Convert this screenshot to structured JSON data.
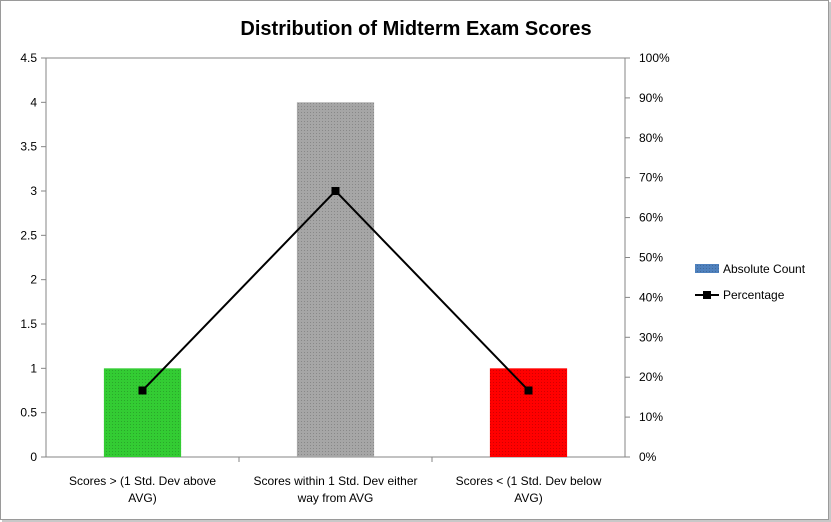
{
  "chart_data": {
    "type": "bar",
    "title": "Distribution of Midterm Exam Scores",
    "categories": [
      [
        "Scores > (1 Std. Dev above",
        "AVG)"
      ],
      [
        "Scores within 1 Std. Dev either",
        "way from AVG"
      ],
      [
        "Scores < (1 Std. Dev below",
        "AVG)"
      ]
    ],
    "series": [
      {
        "name": "Absolute Count",
        "type": "bar",
        "axis": "left",
        "values": [
          1,
          4,
          1
        ],
        "colors": [
          "#33cc33",
          "#a6a6a6",
          "#ff0000"
        ],
        "legend_color": "#4f81bd"
      },
      {
        "name": "Percentage",
        "type": "line",
        "axis": "right",
        "values": [
          16.67,
          66.67,
          16.67
        ],
        "color": "#000000",
        "marker": "square"
      }
    ],
    "y_left": {
      "min": 0,
      "max": 4.5,
      "step": 0.5,
      "ticks": [
        "0",
        "0.5",
        "1",
        "1.5",
        "2",
        "2.5",
        "3",
        "3.5",
        "4",
        "4.5"
      ]
    },
    "y_right": {
      "min": 0,
      "max": 100,
      "step": 10,
      "ticks": [
        "0%",
        "10%",
        "20%",
        "30%",
        "40%",
        "50%",
        "60%",
        "70%",
        "80%",
        "90%",
        "100%"
      ]
    },
    "grid": false,
    "legend_position": "right"
  }
}
